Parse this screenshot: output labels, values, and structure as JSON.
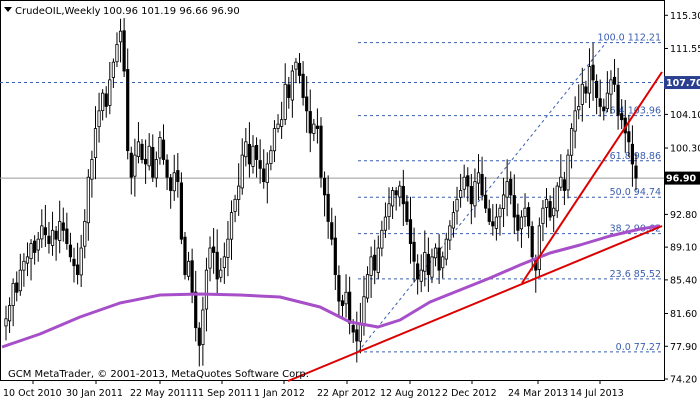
{
  "header": {
    "symbol_label": "CrudeOIL,Weekly",
    "ohlc_label": "100.96 101.19 96.66 96.90"
  },
  "footer": {
    "copyright": "GCM MetaTrader, © 2001-2013, MetaQuotes Software Corp."
  },
  "colors": {
    "background": "#ffffff",
    "candle": "#000000",
    "ma_line": "#a64fc9",
    "trend_line": "#dd0000",
    "fib_line": "#3a5fb0",
    "hline_label_bg": "#2a3f8f",
    "price_label_bg": "#000000"
  },
  "chart_data": {
    "type": "candlestick",
    "ylim": [
      74.2,
      116.8
    ],
    "y_ticks": [
      "115.30",
      "111.55",
      "107.95",
      "104.10",
      "100.30",
      "96.65",
      "92.80",
      "89.10",
      "85.40",
      "81.60",
      "77.90",
      "74.20"
    ],
    "x_ticks": [
      "10 Oct 2010",
      "30 Jan 2011",
      "22 May 2011",
      "11 Sep 2011",
      "1 Jan 2012",
      "22 Apr 2012",
      "12 Aug 2012",
      "2 Dec 2012",
      "24 Mar 2013",
      "14 Jul 2013"
    ],
    "current_price": "96.90",
    "horizontal_line_price": "107.70",
    "fib_levels": [
      {
        "label": "100.0 112.21",
        "value": 112.21
      },
      {
        "label": "76.4 103.96",
        "value": 103.96
      },
      {
        "label": "61.8 98.86",
        "value": 98.86
      },
      {
        "label": "50.0 94.74",
        "value": 94.74
      },
      {
        "label": "38.2 90.62",
        "value": 90.62
      },
      {
        "label": "23.6 85.52",
        "value": 85.52
      },
      {
        "label": "0.0 77.27",
        "value": 77.27
      }
    ],
    "closes": [
      81.0,
      82.5,
      85.0,
      84.0,
      86.5,
      87.5,
      88.0,
      89.5,
      88.5,
      90.0,
      91.5,
      90.5,
      89.5,
      91.0,
      90.0,
      92.0,
      91.0,
      89.5,
      88.0,
      87.0,
      86.0,
      89.0,
      92.0,
      97.0,
      99.0,
      102.5,
      104.5,
      106.5,
      105.0,
      108.0,
      110.0,
      112.0,
      113.5,
      109.0,
      100.0,
      97.0,
      99.5,
      101.0,
      99.0,
      98.5,
      100.5,
      97.0,
      99.0,
      101.5,
      99.0,
      97.0,
      95.5,
      97.5,
      96.5,
      90.0,
      86.0,
      87.5,
      84.0,
      80.0,
      78.0,
      82.0,
      86.5,
      89.0,
      88.5,
      85.5,
      86.5,
      88.0,
      90.0,
      93.0,
      94.5,
      96.0,
      99.5,
      101.0,
      98.5,
      100.5,
      99.0,
      98.0,
      96.5,
      98.5,
      100.0,
      102.5,
      103.0,
      103.5,
      107.5,
      106.0,
      109.0,
      110.0,
      108.5,
      106.0,
      104.5,
      102.0,
      103.0,
      102.5,
      97.0,
      95.0,
      92.0,
      90.0,
      86.0,
      83.0,
      82.5,
      84.0,
      80.5,
      79.5,
      78.5,
      80.5,
      83.5,
      86.0,
      88.0,
      86.5,
      89.0,
      91.0,
      92.5,
      94.0,
      95.5,
      95.0,
      96.0,
      94.0,
      92.0,
      89.5,
      87.5,
      85.5,
      86.5,
      88.5,
      86.0,
      88.0,
      89.0,
      86.5,
      88.0,
      90.0,
      91.5,
      93.0,
      94.5,
      95.5,
      97.0,
      96.0,
      94.0,
      96.5,
      97.5,
      95.0,
      93.5,
      92.0,
      91.5,
      92.5,
      93.5,
      95.0,
      96.5,
      95.0,
      92.5,
      91.0,
      92.5,
      93.5,
      91.5,
      88.0,
      86.5,
      91.5,
      93.5,
      94.5,
      92.5,
      93.5,
      96.0,
      97.0,
      95.5,
      99.5,
      102.5,
      104.5,
      105.0,
      107.5,
      106.5,
      109.5,
      108.0,
      106.0,
      105.0,
      104.5,
      106.5,
      108.0,
      107.5,
      104.0,
      103.5,
      102.0,
      101.0,
      98.5,
      96.9
    ]
  }
}
